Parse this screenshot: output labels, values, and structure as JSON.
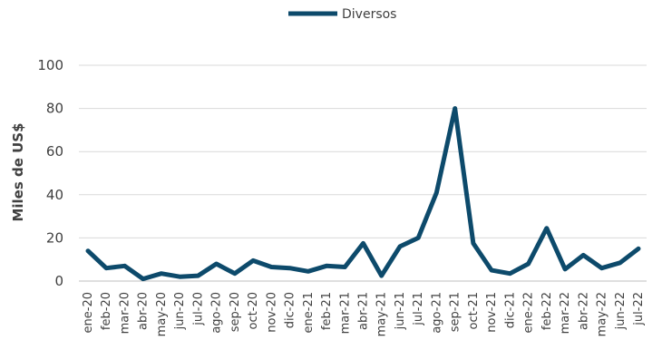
{
  "chart_data": {
    "type": "line",
    "ylabel": "Miles de US$",
    "ylim": [
      0,
      100
    ],
    "yticks": [
      0,
      20,
      40,
      60,
      80,
      100
    ],
    "grid": true,
    "legend_position": "top-center",
    "categories": [
      "ene-20",
      "feb-20",
      "mar-20",
      "abr-20",
      "may-20",
      "jun-20",
      "jul-20",
      "ago-20",
      "sep-20",
      "oct-20",
      "nov-20",
      "dic-20",
      "ene-21",
      "feb-21",
      "mar-21",
      "abr-21",
      "may-21",
      "jun-21",
      "jul-21",
      "ago-21",
      "sep-21",
      "oct-21",
      "nov-21",
      "dic-21",
      "ene-22",
      "feb-22",
      "mar-22",
      "abr-22",
      "may-22",
      "jun-22",
      "jul-22"
    ],
    "series": [
      {
        "name": "Diversos",
        "color": "#0d4a6b",
        "values": [
          14,
          6,
          7,
          1,
          3.5,
          2,
          2.5,
          8,
          3.5,
          9.5,
          6.5,
          6,
          4.5,
          7,
          6.5,
          17.5,
          2.5,
          16,
          20,
          41,
          80,
          17.5,
          5,
          3.5,
          8,
          24.5,
          5.5,
          12,
          6,
          8.5,
          15
        ]
      }
    ]
  }
}
